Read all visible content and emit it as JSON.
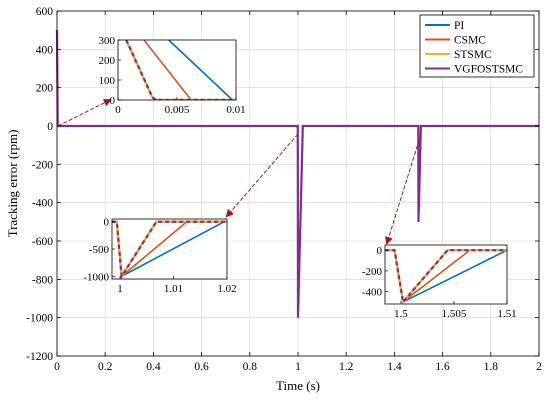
{
  "chart_data": {
    "type": "line",
    "title": "",
    "xlabel": "Time (s)",
    "ylabel": "Tracking error (rpm)",
    "xlim": [
      0,
      2
    ],
    "ylim": [
      -1200,
      600
    ],
    "xticks": [
      0,
      0.2,
      0.4,
      0.6,
      0.8,
      1,
      1.2,
      1.4,
      1.6,
      1.8,
      2
    ],
    "xtick_labels": [
      "0",
      "0.2",
      "0.4",
      "0.6",
      "0.8",
      "1",
      "1.2",
      "1.4",
      "1.6",
      "1.8",
      "2"
    ],
    "yticks": [
      600,
      400,
      200,
      0,
      -200,
      -400,
      -600,
      -800,
      -1000,
      -1200
    ],
    "ytick_labels": [
      "600",
      "400",
      "200",
      "0",
      "-200",
      "-400",
      "-600",
      "-800",
      "-1000",
      "-1200"
    ],
    "grid": true,
    "legend_position": "top-right",
    "series": [
      {
        "name": "PI",
        "color": "#0072BD",
        "dash": "solid"
      },
      {
        "name": "CSMC",
        "color": "#D95319",
        "dash": "solid"
      },
      {
        "name": "STSMC",
        "color": "#EDB120",
        "dash": "solid"
      },
      {
        "name": "VGFOSTSMC",
        "color": "#7E2F8E",
        "dash": "dashed"
      }
    ],
    "main_trace": {
      "description_points": [
        [
          0,
          500
        ],
        [
          0.003,
          0
        ],
        [
          0.999,
          0
        ],
        [
          1.0,
          -1000
        ],
        [
          1.02,
          0
        ],
        [
          1.499,
          0
        ],
        [
          1.5,
          -500
        ],
        [
          1.51,
          0
        ],
        [
          2,
          0
        ]
      ]
    },
    "insets": [
      {
        "id": "inset-start",
        "xlim": [
          0,
          0.01
        ],
        "ylim": [
          0,
          300
        ],
        "xticks": [
          0,
          0.005,
          0.01
        ],
        "xtick_labels": [
          "0",
          "0.005",
          "0.01"
        ],
        "yticks": [
          300,
          200,
          100,
          0
        ],
        "ytick_labels": [
          "300",
          "200",
          "100",
          "0"
        ],
        "series": {
          "PI": [
            [
              0.0043,
              300
            ],
            [
              0.0097,
              0
            ],
            [
              0.01,
              0
            ]
          ],
          "CSMC": [
            [
              0.0022,
              300
            ],
            [
              0.0062,
              0
            ],
            [
              0.01,
              0
            ]
          ],
          "STSMC": [
            [
              0.0007,
              300
            ],
            [
              0.0029,
              15
            ],
            [
              0.0032,
              0
            ],
            [
              0.01,
              0
            ]
          ],
          "VGFOSTSMC": [
            [
              0.0007,
              300
            ],
            [
              0.0029,
              15
            ],
            [
              0.0032,
              0
            ],
            [
              0.01,
              0
            ]
          ]
        }
      },
      {
        "id": "inset-one",
        "xlim": [
          0.9985,
          1.02
        ],
        "ylim": [
          -1050,
          50
        ],
        "xticks": [
          1,
          1.01,
          1.02
        ],
        "xtick_labels": [
          "1",
          "1.01",
          "1.02"
        ],
        "yticks": [
          0,
          -500,
          -1000
        ],
        "ytick_labels": [
          "0",
          "-500",
          "-1000"
        ],
        "series": {
          "PI": [
            [
              0.9985,
              0
            ],
            [
              0.9994,
              0
            ],
            [
              1.0003,
              -1000
            ],
            [
              1.0195,
              0
            ],
            [
              1.02,
              0
            ]
          ],
          "CSMC": [
            [
              0.9985,
              0
            ],
            [
              0.9994,
              0
            ],
            [
              1.0003,
              -1000
            ],
            [
              1.0125,
              0
            ],
            [
              1.02,
              0
            ]
          ],
          "STSMC": [
            [
              0.9985,
              0
            ],
            [
              0.9994,
              0
            ],
            [
              1.0003,
              -1000
            ],
            [
              1.0068,
              0
            ],
            [
              1.02,
              0
            ]
          ],
          "VGFOSTSMC": [
            [
              0.9985,
              0
            ],
            [
              0.9994,
              0
            ],
            [
              1.0003,
              -1000
            ],
            [
              1.0068,
              0
            ],
            [
              1.02,
              0
            ]
          ]
        }
      },
      {
        "id": "inset-one-five",
        "xlim": [
          1.4985,
          1.51
        ],
        "ylim": [
          -520,
          50
        ],
        "xticks": [
          1.5,
          1.505,
          1.51
        ],
        "xtick_labels": [
          "1.5",
          "1.505",
          "1.51"
        ],
        "yticks": [
          0,
          -200,
          -400
        ],
        "ytick_labels": [
          "0",
          "-200",
          "-400"
        ],
        "series": {
          "PI": [
            [
              1.4985,
              0
            ],
            [
              1.4994,
              0
            ],
            [
              1.5002,
              -500
            ],
            [
              1.51,
              0
            ]
          ],
          "CSMC": [
            [
              1.4985,
              0
            ],
            [
              1.4994,
              0
            ],
            [
              1.5002,
              -500
            ],
            [
              1.5065,
              0
            ],
            [
              1.51,
              0
            ]
          ],
          "STSMC": [
            [
              1.4985,
              0
            ],
            [
              1.4994,
              0
            ],
            [
              1.5002,
              -500
            ],
            [
              1.5044,
              0
            ],
            [
              1.51,
              0
            ]
          ],
          "VGFOSTSMC": [
            [
              1.4985,
              0
            ],
            [
              1.4994,
              0
            ],
            [
              1.5002,
              -500
            ],
            [
              1.5044,
              0
            ],
            [
              1.51,
              0
            ]
          ]
        }
      }
    ]
  }
}
